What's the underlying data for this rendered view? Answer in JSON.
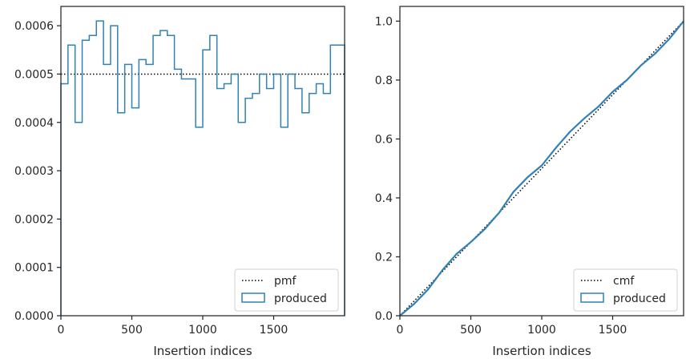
{
  "colors": {
    "series": "#3182b3",
    "reference": "#000000",
    "axes": "#262626"
  },
  "chart_data": [
    {
      "type": "line",
      "step": true,
      "xlabel": "Insertion indices",
      "ylabel": "",
      "title": "",
      "xlim": [
        0,
        2000
      ],
      "ylim": [
        0,
        0.00064
      ],
      "xticks": [
        0,
        500,
        1000,
        1500
      ],
      "xtick_labels": [
        "0",
        "500",
        "1000",
        "1500"
      ],
      "yticks": [
        0,
        0.0001,
        0.0002,
        0.0003,
        0.0004,
        0.0005,
        0.0006
      ],
      "ytick_labels": [
        "0.0000",
        "0.0001",
        "0.0002",
        "0.0003",
        "0.0004",
        "0.0005",
        "0.0006"
      ],
      "grid": false,
      "legend": {
        "position": "lower-right",
        "entries": [
          "pmf",
          "produced"
        ]
      },
      "series": [
        {
          "name": "pmf",
          "style": "dotted",
          "x": [
            0,
            2000
          ],
          "y": [
            0.0005,
            0.0005
          ]
        },
        {
          "name": "produced",
          "style": "step",
          "bin_width": 50,
          "bin_starts": [
            0,
            50,
            100,
            150,
            200,
            250,
            300,
            350,
            400,
            450,
            500,
            550,
            600,
            650,
            700,
            750,
            800,
            850,
            900,
            950,
            1000,
            1050,
            1100,
            1150,
            1200,
            1250,
            1300,
            1350,
            1400,
            1450,
            1500,
            1550,
            1600,
            1650,
            1700,
            1750,
            1800,
            1850,
            1900,
            1950
          ],
          "values": [
            0.00048,
            0.00056,
            0.0004,
            0.00057,
            0.00058,
            0.00061,
            0.00052,
            0.0006,
            0.00042,
            0.00052,
            0.00043,
            0.00053,
            0.00052,
            0.00058,
            0.00059,
            0.00058,
            0.00051,
            0.00049,
            0.00049,
            0.00039,
            0.00055,
            0.00058,
            0.00047,
            0.00048,
            0.0005,
            0.0004,
            0.00045,
            0.00046,
            0.0005,
            0.00047,
            0.0005,
            0.00039,
            0.0005,
            0.00047,
            0.00042,
            0.00046,
            0.00048,
            0.00046,
            0.00056,
            0.00056
          ]
        }
      ]
    },
    {
      "type": "line",
      "step": true,
      "xlabel": "Insertion indices",
      "ylabel": "",
      "title": "",
      "xlim": [
        0,
        2000
      ],
      "ylim": [
        0,
        1.05
      ],
      "xticks": [
        0,
        500,
        1000,
        1500
      ],
      "xtick_labels": [
        "0",
        "500",
        "1000",
        "1500"
      ],
      "yticks": [
        0,
        0.2,
        0.4,
        0.6,
        0.8,
        1.0
      ],
      "ytick_labels": [
        "0.0",
        "0.2",
        "0.4",
        "0.6",
        "0.8",
        "1.0"
      ],
      "grid": false,
      "legend": {
        "position": "lower-right",
        "entries": [
          "cmf",
          "produced"
        ]
      },
      "series": [
        {
          "name": "cmf",
          "style": "dotted",
          "x": [
            0,
            2000
          ],
          "y": [
            0,
            1.0
          ]
        },
        {
          "name": "produced",
          "style": "step",
          "x": [
            0,
            100,
            200,
            300,
            400,
            500,
            600,
            700,
            800,
            900,
            1000,
            1100,
            1200,
            1300,
            1400,
            1500,
            1600,
            1700,
            1800,
            1900,
            2000
          ],
          "y": [
            0,
            0.04,
            0.09,
            0.155,
            0.21,
            0.25,
            0.295,
            0.35,
            0.42,
            0.47,
            0.51,
            0.57,
            0.625,
            0.67,
            0.71,
            0.76,
            0.8,
            0.85,
            0.89,
            0.94,
            1.0
          ]
        }
      ]
    }
  ]
}
